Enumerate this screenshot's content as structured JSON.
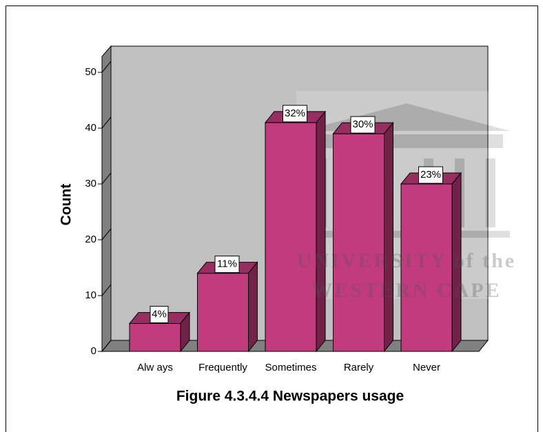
{
  "chart_data": {
    "type": "bar3d",
    "title": "Figure 4.3.4.4 Newspapers usage",
    "y_label": "Count",
    "categories": [
      "Alw ays",
      "Frequently",
      "Sometimes",
      "Rarely",
      "Never"
    ],
    "values": [
      5,
      14,
      41,
      39,
      30
    ],
    "value_labels": [
      "4%",
      "11%",
      "32%",
      "30%",
      "23%"
    ],
    "color": "#c13b7e",
    "ylim": [
      0,
      52
    ],
    "yticks": [
      0,
      10,
      20,
      30,
      40,
      50
    ],
    "watermark": [
      "UNIVERSITY of the",
      "WESTERN CAPE"
    ]
  }
}
